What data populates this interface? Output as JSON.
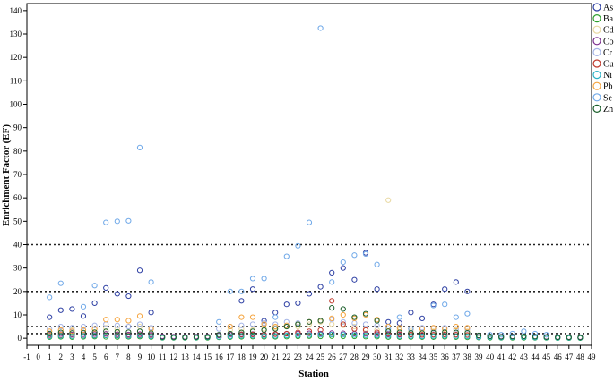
{
  "chart_data": {
    "type": "scatter",
    "xlabel": "Station",
    "ylabel": "Enrichment Factor (EF)",
    "xlim": [
      -1,
      49
    ],
    "ylim": [
      -3,
      143
    ],
    "x_ticks": [
      -1,
      0,
      1,
      2,
      3,
      4,
      5,
      6,
      7,
      8,
      9,
      10,
      11,
      12,
      13,
      14,
      15,
      16,
      17,
      18,
      19,
      20,
      21,
      22,
      23,
      24,
      25,
      26,
      27,
      28,
      29,
      30,
      31,
      32,
      33,
      34,
      35,
      36,
      37,
      38,
      39,
      40,
      41,
      42,
      43,
      44,
      45,
      46,
      47,
      48,
      49
    ],
    "y_ticks": [
      0,
      10,
      20,
      30,
      40,
      50,
      60,
      70,
      80,
      90,
      100,
      110,
      120,
      130,
      140
    ],
    "reference_lines": [
      2,
      5,
      20,
      40
    ],
    "reference_line_style": "dotted",
    "grid": false,
    "marker": "open-circle",
    "legend_position": "right",
    "series": [
      {
        "name": "As",
        "color": "#2d3fa3",
        "x": [
          1,
          2,
          3,
          4,
          5,
          6,
          7,
          8,
          9,
          10,
          18,
          19,
          20,
          21,
          22,
          23,
          24,
          25,
          26,
          27,
          28,
          29,
          30,
          31,
          32,
          33,
          34,
          35,
          36,
          37,
          38
        ],
        "y": [
          9,
          12,
          12.5,
          9.5,
          15,
          21.5,
          19,
          18,
          29,
          11,
          16,
          21,
          7.5,
          11,
          14.5,
          15,
          19,
          22,
          28,
          30,
          25,
          36.5,
          21,
          7,
          6.5,
          11,
          8.5,
          14.5,
          21,
          24,
          20
        ]
      },
      {
        "name": "Ba",
        "color": "#2ca02c",
        "x": [
          1,
          2,
          3,
          4,
          5,
          6,
          7,
          8,
          9,
          10,
          11,
          12,
          13,
          14,
          15,
          16,
          17,
          18,
          19,
          20,
          21,
          22,
          23,
          24,
          25,
          26,
          27,
          28,
          29,
          30,
          31,
          32,
          33,
          34,
          35,
          36,
          37,
          38,
          39,
          40,
          41,
          42,
          43,
          44,
          45,
          46,
          47,
          48
        ],
        "y": [
          0.5,
          0.6,
          0.5,
          0.6,
          0.7,
          0.6,
          0.5,
          0.6,
          0.7,
          0.5,
          0.2,
          0.2,
          0.2,
          0.2,
          0.2,
          0.4,
          0.5,
          0.6,
          0.7,
          0.6,
          0.6,
          0.7,
          0.8,
          0.9,
          0.8,
          0.9,
          0.8,
          0.8,
          0.7,
          0.7,
          0.5,
          0.5,
          0.5,
          0.5,
          0.5,
          0.6,
          0.5,
          0.4,
          0.3,
          0.2,
          0.2,
          0.2,
          0.2,
          0.2,
          0.2,
          0.1,
          0.1,
          0.1
        ]
      },
      {
        "name": "Cd",
        "color": "#e8d8a0",
        "x": [
          1,
          3,
          5,
          6,
          7,
          9,
          17,
          18,
          19,
          20,
          21,
          22,
          23,
          24,
          25,
          26,
          27,
          28,
          29,
          30,
          31,
          32,
          33,
          35,
          37,
          38
        ],
        "y": [
          3,
          3.5,
          4,
          4.5,
          4,
          5,
          3.5,
          4,
          3.5,
          4,
          4.5,
          5,
          5,
          6,
          7,
          6,
          5.5,
          5,
          4,
          3.5,
          59,
          3.5,
          3,
          3,
          3.5,
          3
        ]
      },
      {
        "name": "Co",
        "color": "#7b2d8e",
        "x": [
          1,
          2,
          3,
          4,
          5,
          6,
          7,
          8,
          9,
          10,
          11,
          12,
          13,
          14,
          15,
          16,
          17,
          18,
          19,
          20,
          21,
          22,
          23,
          24,
          25,
          26,
          27,
          28,
          29,
          30,
          31,
          32,
          33,
          34,
          35,
          36,
          37,
          38,
          39,
          40,
          41,
          42,
          43,
          44,
          45,
          46,
          47,
          48
        ],
        "y": [
          1.5,
          1.8,
          1.6,
          1.7,
          1.8,
          1.9,
          1.7,
          1.6,
          1.8,
          1.5,
          0.8,
          0.7,
          0.6,
          0.7,
          0.8,
          1.2,
          1.5,
          1.7,
          1.8,
          1.6,
          1.7,
          1.9,
          2,
          2.1,
          2,
          2.2,
          2.1,
          2,
          1.9,
          1.8,
          1.6,
          1.5,
          1.5,
          1.4,
          1.5,
          1.6,
          1.5,
          1.4,
          1,
          0.8,
          0.7,
          0.8,
          0.8,
          0.7,
          0.6,
          0.5,
          0.5,
          0.5
        ]
      },
      {
        "name": "Cr",
        "color": "#a3b3e6",
        "x": [
          1,
          2,
          3,
          4,
          5,
          6,
          7,
          8,
          9,
          10,
          16,
          17,
          18,
          19,
          20,
          21,
          22,
          23,
          24,
          25,
          26,
          27,
          28,
          29,
          30,
          31,
          32,
          33,
          34,
          35,
          36,
          37,
          38
        ],
        "y": [
          4,
          5,
          4.5,
          5,
          5.5,
          6,
          5.5,
          5,
          6,
          4.5,
          4,
          5,
          5.5,
          6,
          6.5,
          6,
          7,
          6.5,
          7,
          7.5,
          8,
          7,
          6.5,
          6,
          5.5,
          5,
          4.5,
          4,
          4.5,
          4,
          4.5,
          4,
          4
        ]
      },
      {
        "name": "Cu",
        "color": "#c0392b",
        "x": [
          1,
          2,
          3,
          4,
          5,
          6,
          7,
          8,
          9,
          10,
          18,
          19,
          20,
          21,
          22,
          23,
          24,
          25,
          26,
          27,
          28,
          29,
          30,
          31,
          32,
          33,
          34,
          35,
          36,
          37,
          38
        ],
        "y": [
          1,
          1.2,
          1,
          1.1,
          1.2,
          1.3,
          1.2,
          1.1,
          1.3,
          1,
          1.5,
          1.6,
          1.5,
          1.8,
          2,
          2.5,
          3,
          3.5,
          16,
          6,
          4,
          3.5,
          2.5,
          2,
          1.8,
          1.6,
          1.5,
          1.5,
          1.6,
          1.5,
          1.4
        ]
      },
      {
        "name": "Ni",
        "color": "#2bb3c6",
        "x": [
          1,
          2,
          3,
          4,
          5,
          6,
          7,
          8,
          9,
          10,
          11,
          12,
          13,
          14,
          15,
          16,
          17,
          18,
          19,
          20,
          21,
          22,
          23,
          24,
          25,
          26,
          27,
          28,
          29,
          30,
          31,
          32,
          33,
          34,
          35,
          36,
          37,
          38,
          39,
          40,
          41,
          42,
          43,
          44,
          45,
          46,
          47,
          48
        ],
        "y": [
          0.8,
          1,
          0.9,
          1,
          1.1,
          1.2,
          1,
          0.9,
          1.1,
          0.8,
          0.3,
          0.3,
          0.3,
          0.3,
          0.4,
          0.6,
          0.8,
          1,
          1.1,
          1,
          1,
          1.2,
          1.3,
          1.4,
          1.5,
          1.6,
          1.5,
          1.4,
          1.3,
          1.2,
          1,
          0.9,
          0.9,
          0.8,
          0.9,
          1,
          0.9,
          0.8,
          0.5,
          0.4,
          0.3,
          0.4,
          0.4,
          0.3,
          0.3,
          0.2,
          0.2,
          0.2
        ]
      },
      {
        "name": "Pb",
        "color": "#f5a33c",
        "x": [
          1,
          2,
          3,
          4,
          5,
          6,
          7,
          8,
          9,
          10,
          17,
          18,
          19,
          20,
          21,
          22,
          23,
          24,
          25,
          26,
          27,
          28,
          29,
          30,
          31,
          32,
          33,
          34,
          35,
          36,
          37,
          38
        ],
        "y": [
          3,
          3.5,
          3,
          3.5,
          4,
          8,
          8,
          7.5,
          9.5,
          4,
          5,
          9,
          9,
          6,
          5,
          5.5,
          6,
          7,
          7.5,
          8.5,
          10,
          8.5,
          10,
          8,
          5,
          4.5,
          4,
          4,
          4.5,
          4,
          5,
          4.5
        ]
      },
      {
        "name": "Se",
        "color": "#6fa8e8",
        "x": [
          1,
          2,
          4,
          5,
          6,
          7,
          8,
          9,
          10,
          16,
          17,
          18,
          19,
          20,
          21,
          22,
          23,
          24,
          25,
          26,
          27,
          28,
          29,
          30,
          31,
          32,
          33,
          35,
          36,
          37,
          38,
          40,
          41,
          42,
          43,
          44,
          45
        ],
        "y": [
          17.5,
          23.5,
          13.5,
          22.5,
          49.5,
          50,
          50.2,
          81.5,
          24,
          7,
          20,
          20,
          25.5,
          25.5,
          9,
          35,
          39.5,
          49.5,
          132.5,
          24,
          32.5,
          35.5,
          36,
          31.5,
          4,
          9,
          4,
          14,
          14.5,
          9,
          10.5,
          1.5,
          1.5,
          2,
          3,
          2,
          1.5
        ]
      },
      {
        "name": "Zn",
        "color": "#1a5e2a",
        "x": [
          1,
          2,
          3,
          4,
          5,
          6,
          7,
          8,
          9,
          10,
          11,
          12,
          13,
          14,
          15,
          16,
          17,
          18,
          19,
          20,
          21,
          22,
          23,
          24,
          25,
          26,
          27,
          28,
          29,
          30,
          31,
          32,
          33,
          34,
          35,
          36,
          37,
          38,
          39,
          40,
          41,
          42,
          43,
          44,
          45,
          46,
          47,
          48
        ],
        "y": [
          2,
          2.5,
          2.2,
          2.4,
          2.6,
          3,
          2.8,
          2.6,
          3,
          2.2,
          0.5,
          0.4,
          0.4,
          0.5,
          0.6,
          1.5,
          2,
          2.5,
          3,
          3.5,
          4,
          5,
          6,
          7,
          7.5,
          13,
          12.5,
          9,
          10.5,
          7.5,
          3,
          2.5,
          2.3,
          2.2,
          2.4,
          2.6,
          2.5,
          2.3,
          1.2,
          0.8,
          0.6,
          0.7,
          0.8,
          0.7,
          0.5,
          0.4,
          0.4,
          0.3
        ]
      }
    ]
  }
}
